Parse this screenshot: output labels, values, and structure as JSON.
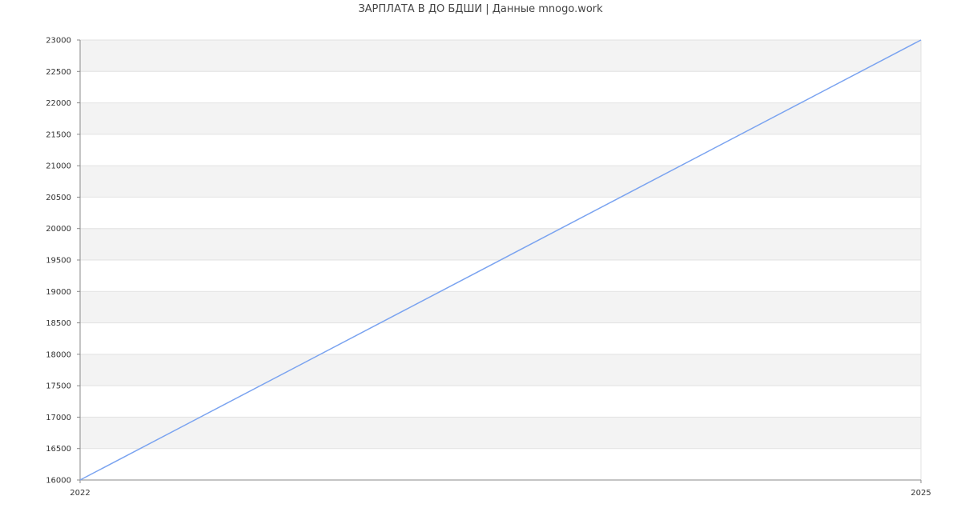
{
  "chart_data": {
    "type": "line",
    "title": "ЗАРПЛАТА В ДО БДШИ | Данные mnogo.work",
    "xlabel": "",
    "ylabel": "",
    "x": [
      2022,
      2025
    ],
    "x_ticks": [
      "2022",
      "2025"
    ],
    "xlim": [
      2022,
      2025
    ],
    "ylim": [
      16000,
      23000
    ],
    "y_ticks": [
      16000,
      16500,
      17000,
      17500,
      18000,
      18500,
      19000,
      19500,
      20000,
      20500,
      21000,
      21500,
      22000,
      22500,
      23000
    ],
    "series": [
      {
        "values": [
          16000,
          23000
        ],
        "color": "#7aa3f0"
      }
    ],
    "grid": true,
    "band_color": "#f3f3f3"
  }
}
